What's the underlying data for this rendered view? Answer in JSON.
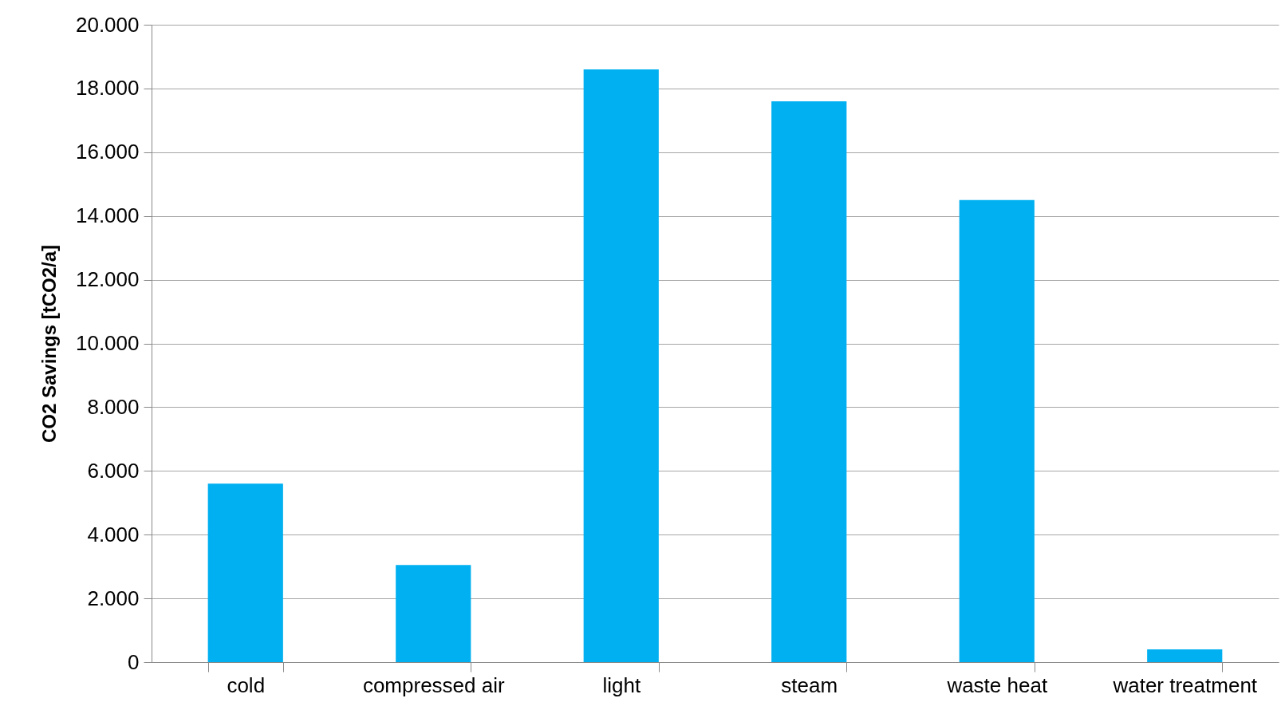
{
  "chart_data": {
    "type": "bar",
    "ylabel": "CO2 Savings [tCO2/a]",
    "categories": [
      "cold",
      "compressed air",
      "light",
      "steam",
      "waste heat",
      "water treatment"
    ],
    "values": [
      5600,
      3050,
      18600,
      17600,
      14500,
      400
    ],
    "color": "#00b0f0",
    "ylim": [
      0,
      20000
    ],
    "yticks": [
      0,
      {
        "value": 2000,
        "label": "2.000"
      },
      {
        "value": 4000,
        "label": "4.000"
      },
      {
        "value": 6000,
        "label": "6.000"
      },
      {
        "value": 8000,
        "label": "8.000"
      },
      {
        "value": 10000,
        "label": "10.000"
      },
      {
        "value": 12000,
        "label": "12.000"
      },
      {
        "value": 14000,
        "label": "14.000"
      },
      {
        "value": 16000,
        "label": "16.000"
      },
      {
        "value": 18000,
        "label": "18.000"
      },
      {
        "value": 20000,
        "label": "20.000"
      }
    ],
    "grid": true
  }
}
